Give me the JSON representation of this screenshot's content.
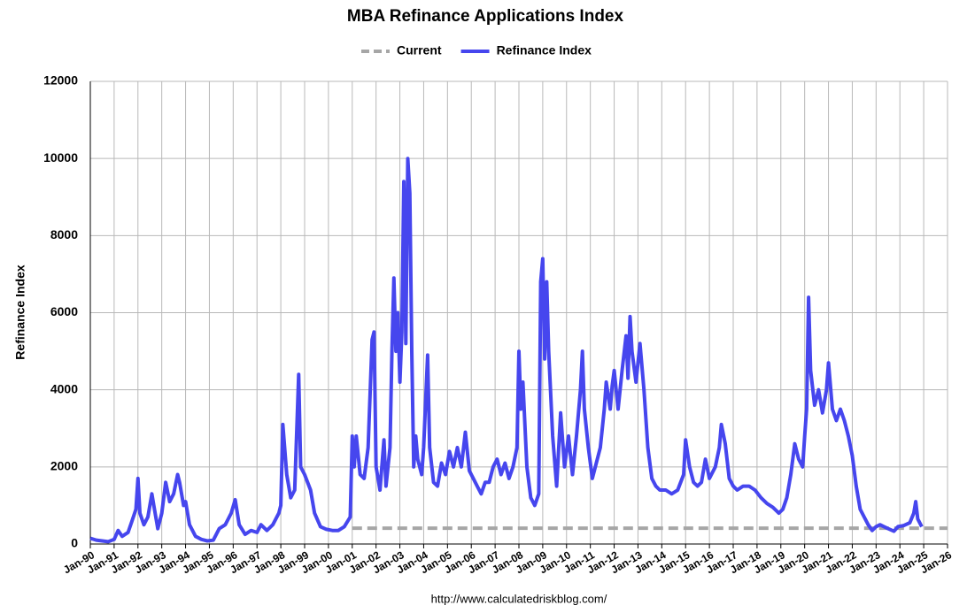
{
  "chart_data": {
    "type": "line",
    "title": "MBA Refinance Applications Index",
    "y_label": "Refinance Index",
    "source": "http://www.calculatedriskblog.com/",
    "grid": true,
    "legend": "top",
    "xlim": [
      "1990-01",
      "2026-01"
    ],
    "ylim": [
      0,
      12000
    ],
    "yticks": [
      0,
      2000,
      4000,
      6000,
      8000,
      10000,
      12000
    ],
    "xticks": [
      {
        "value": "1990-01",
        "label": "Jan-90"
      },
      {
        "value": "1991-01",
        "label": "Jan-91"
      },
      {
        "value": "1992-01",
        "label": "Jan-92"
      },
      {
        "value": "1993-01",
        "label": "Jan-93"
      },
      {
        "value": "1994-01",
        "label": "Jan-94"
      },
      {
        "value": "1995-01",
        "label": "Jan-95"
      },
      {
        "value": "1996-01",
        "label": "Jan-96"
      },
      {
        "value": "1997-01",
        "label": "Jan-97"
      },
      {
        "value": "1998-01",
        "label": "Jan-98"
      },
      {
        "value": "1999-01",
        "label": "Jan-99"
      },
      {
        "value": "2000-01",
        "label": "Jan-00"
      },
      {
        "value": "2001-01",
        "label": "Jan-01"
      },
      {
        "value": "2002-01",
        "label": "Jan-02"
      },
      {
        "value": "2003-01",
        "label": "Jan-03"
      },
      {
        "value": "2004-01",
        "label": "Jan-04"
      },
      {
        "value": "2005-01",
        "label": "Jan-05"
      },
      {
        "value": "2006-01",
        "label": "Jan-06"
      },
      {
        "value": "2007-01",
        "label": "Jan-07"
      },
      {
        "value": "2008-01",
        "label": "Jan-08"
      },
      {
        "value": "2009-01",
        "label": "Jan-09"
      },
      {
        "value": "2010-01",
        "label": "Jan-10"
      },
      {
        "value": "2011-01",
        "label": "Jan-11"
      },
      {
        "value": "2012-01",
        "label": "Jan-12"
      },
      {
        "value": "2013-01",
        "label": "Jan-13"
      },
      {
        "value": "2014-01",
        "label": "Jan-14"
      },
      {
        "value": "2015-01",
        "label": "Jan-15"
      },
      {
        "value": "2016-01",
        "label": "Jan-16"
      },
      {
        "value": "2017-01",
        "label": "Jan-17"
      },
      {
        "value": "2018-01",
        "label": "Jan-18"
      },
      {
        "value": "2019-01",
        "label": "Jan-19"
      },
      {
        "value": "2020-01",
        "label": "Jan-20"
      },
      {
        "value": "2021-01",
        "label": "Jan-21"
      },
      {
        "value": "2022-01",
        "label": "Jan-22"
      },
      {
        "value": "2023-01",
        "label": "Jan-23"
      },
      {
        "value": "2024-01",
        "label": "Jan-24"
      },
      {
        "value": "2025-01",
        "label": "Jan-25"
      },
      {
        "value": "2026-01",
        "label": "Jan-26"
      }
    ],
    "series": [
      {
        "name": "Current",
        "color": "#a6a6a6",
        "dashed": true,
        "x": [
          "2001-01",
          "2026-01"
        ],
        "values": [
          410,
          410
        ]
      },
      {
        "name": "Refinance Index",
        "color": "#4646ee",
        "x": [
          "1990-01",
          "1990-04",
          "1990-07",
          "1990-10",
          "1991-01",
          "1991-03",
          "1991-05",
          "1991-08",
          "1991-10",
          "1991-12",
          "1992-01",
          "1992-02",
          "1992-04",
          "1992-06",
          "1992-08",
          "1992-09",
          "1992-11",
          "1993-01",
          "1993-03",
          "1993-05",
          "1993-07",
          "1993-09",
          "1993-10",
          "1993-12",
          "1994-01",
          "1994-03",
          "1994-06",
          "1994-09",
          "1994-12",
          "1995-03",
          "1995-06",
          "1995-09",
          "1995-12",
          "1996-02",
          "1996-04",
          "1996-07",
          "1996-10",
          "1997-01",
          "1997-03",
          "1997-06",
          "1997-09",
          "1997-12",
          "1998-01",
          "1998-02",
          "1998-04",
          "1998-06",
          "1998-08",
          "1998-10",
          "1998-11",
          "1999-01",
          "1999-04",
          "1999-06",
          "1999-09",
          "1999-12",
          "2000-03",
          "2000-06",
          "2000-09",
          "2000-12",
          "2001-01",
          "2001-02",
          "2001-03",
          "2001-05",
          "2001-07",
          "2001-09",
          "2001-11",
          "2001-12",
          "2002-01",
          "2002-03",
          "2002-05",
          "2002-06",
          "2002-08",
          "2002-09",
          "2002-10",
          "2002-11",
          "2002-12",
          "2003-01",
          "2003-02",
          "2003-03",
          "2003-04",
          "2003-05",
          "2003-06",
          "2003-07",
          "2003-08",
          "2003-09",
          "2003-10",
          "2003-12",
          "2004-01",
          "2004-03",
          "2004-04",
          "2004-06",
          "2004-08",
          "2004-10",
          "2004-12",
          "2005-02",
          "2005-04",
          "2005-06",
          "2005-08",
          "2005-10",
          "2005-12",
          "2006-02",
          "2006-04",
          "2006-06",
          "2006-08",
          "2006-10",
          "2006-12",
          "2007-02",
          "2007-04",
          "2007-06",
          "2007-08",
          "2007-10",
          "2007-12",
          "2008-01",
          "2008-02",
          "2008-03",
          "2008-05",
          "2008-07",
          "2008-09",
          "2008-11",
          "2008-12",
          "2009-01",
          "2009-02",
          "2009-03",
          "2009-04",
          "2009-06",
          "2009-08",
          "2009-10",
          "2009-12",
          "2010-02",
          "2010-04",
          "2010-06",
          "2010-08",
          "2010-09",
          "2010-10",
          "2010-12",
          "2011-02",
          "2011-04",
          "2011-06",
          "2011-08",
          "2011-09",
          "2011-11",
          "2011-12",
          "2012-01",
          "2012-03",
          "2012-05",
          "2012-07",
          "2012-08",
          "2012-09",
          "2012-10",
          "2012-12",
          "2013-02",
          "2013-04",
          "2013-06",
          "2013-08",
          "2013-10",
          "2013-12",
          "2014-03",
          "2014-06",
          "2014-09",
          "2014-12",
          "2015-01",
          "2015-03",
          "2015-05",
          "2015-07",
          "2015-09",
          "2015-11",
          "2016-01",
          "2016-04",
          "2016-06",
          "2016-07",
          "2016-09",
          "2016-11",
          "2017-01",
          "2017-03",
          "2017-06",
          "2017-09",
          "2017-12",
          "2018-03",
          "2018-06",
          "2018-09",
          "2018-12",
          "2019-02",
          "2019-04",
          "2019-06",
          "2019-08",
          "2019-10",
          "2019-12",
          "2020-01",
          "2020-02",
          "2020-03",
          "2020-04",
          "2020-06",
          "2020-08",
          "2020-10",
          "2020-12",
          "2021-01",
          "2021-03",
          "2021-05",
          "2021-07",
          "2021-09",
          "2021-11",
          "2022-01",
          "2022-03",
          "2022-05",
          "2022-07",
          "2022-09",
          "2022-11",
          "2023-01",
          "2023-03",
          "2023-05",
          "2023-07",
          "2023-10",
          "2023-12",
          "2024-03",
          "2024-06",
          "2024-08",
          "2024-09",
          "2024-10",
          "2024-12"
        ],
        "values": [
          150,
          100,
          80,
          60,
          120,
          350,
          200,
          300,
          600,
          900,
          1700,
          800,
          500,
          700,
          1300,
          1000,
          400,
          800,
          1600,
          1100,
          1300,
          1800,
          1600,
          1000,
          1100,
          500,
          200,
          120,
          80,
          100,
          400,
          500,
          800,
          1150,
          500,
          250,
          350,
          300,
          500,
          350,
          500,
          800,
          1000,
          3100,
          1800,
          1200,
          1400,
          4400,
          2000,
          1800,
          1400,
          800,
          450,
          380,
          350,
          350,
          450,
          700,
          2800,
          2000,
          2800,
          1800,
          1700,
          2500,
          5300,
          5500,
          2000,
          1400,
          2700,
          1500,
          2500,
          5000,
          6900,
          5000,
          6000,
          4200,
          5500,
          9400,
          5200,
          10000,
          9100,
          5000,
          2000,
          2800,
          2200,
          1800,
          2500,
          4900,
          2500,
          1600,
          1500,
          2100,
          1800,
          2400,
          2000,
          2500,
          2000,
          2900,
          1900,
          1700,
          1500,
          1300,
          1600,
          1600,
          2000,
          2200,
          1800,
          2100,
          1700,
          2000,
          2500,
          5000,
          3500,
          4200,
          2000,
          1200,
          1000,
          1300,
          6800,
          7400,
          4800,
          6800,
          5000,
          2800,
          1500,
          3400,
          2000,
          2800,
          1800,
          2800,
          4000,
          5000,
          3500,
          2500,
          1700,
          2100,
          2500,
          3500,
          4200,
          3500,
          4100,
          4500,
          3500,
          4500,
          5400,
          4300,
          5900,
          5000,
          4200,
          5200,
          4000,
          2500,
          1700,
          1500,
          1400,
          1400,
          1300,
          1400,
          1800,
          2700,
          2000,
          1600,
          1500,
          1600,
          2200,
          1700,
          2000,
          2500,
          3100,
          2600,
          1700,
          1500,
          1400,
          1500,
          1500,
          1400,
          1200,
          1050,
          950,
          800,
          900,
          1200,
          1800,
          2600,
          2200,
          2000,
          2800,
          3500,
          6400,
          4500,
          3600,
          4000,
          3400,
          4000,
          4700,
          3500,
          3200,
          3500,
          3200,
          2800,
          2300,
          1500,
          900,
          700,
          500,
          350,
          450,
          500,
          450,
          400,
          330,
          450,
          480,
          550,
          800,
          1100,
          650,
          450
        ]
      }
    ]
  }
}
